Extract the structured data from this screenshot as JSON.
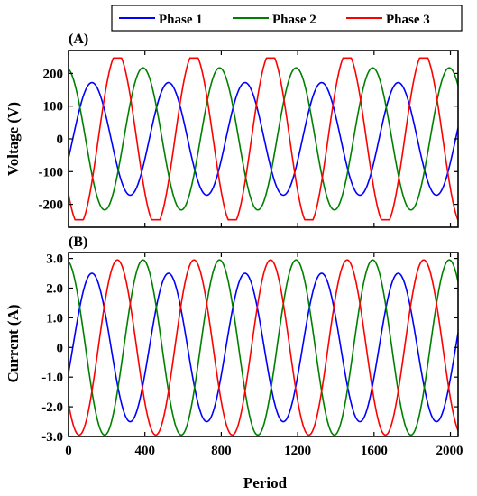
{
  "legend": [
    "Phase 1",
    "Phase 2",
    "Phase 3"
  ],
  "colors": {
    "Phase 1": "#0000ff",
    "Phase 2": "#008000",
    "Phase 3": "#ff0000"
  },
  "chart_data": [
    {
      "type": "line",
      "panel_label": "(A)",
      "ylabel": "Voltage (V)",
      "xlabel": "",
      "xlim": [
        0,
        2040
      ],
      "ylim": [
        -270,
        270
      ],
      "yticks": [
        -200,
        -100,
        0,
        100,
        200
      ],
      "ytick_labels": [
        "-200",
        "-100",
        "0",
        "100",
        "200"
      ],
      "xtick_labels_shown": false,
      "period": 401,
      "series": [
        {
          "name": "Phase 1",
          "amplitude": 172,
          "clip": 172,
          "phase_deg": -20,
          "peaks_x": [
            220,
            621,
            1022,
            1423,
            1824
          ],
          "troughs_x": [
            20,
            421,
            822,
            1223,
            1624
          ]
        },
        {
          "name": "Phase 2",
          "amplitude": 217,
          "clip": 217,
          "phase_deg": 100,
          "peaks_x": [
            352,
            753,
            1154,
            1555,
            1956
          ],
          "troughs_x": [
            152,
            553,
            954,
            1355,
            1756
          ]
        },
        {
          "name": "Phase 3",
          "amplitude": 262,
          "clip": 247,
          "phase_deg": -140,
          "peaks_x": [
            86,
            487,
            888,
            1289,
            1690
          ],
          "troughs_x": [
            286,
            687,
            1088,
            1489,
            1890
          ]
        }
      ]
    },
    {
      "type": "line",
      "panel_label": "(B)",
      "ylabel": "Current (A)",
      "xlabel": "Period",
      "xlim": [
        0,
        2040
      ],
      "ylim": [
        -3.0,
        3.2
      ],
      "xticks": [
        0,
        400,
        800,
        1200,
        1600,
        2000
      ],
      "xtick_labels": [
        "0",
        "400",
        "800",
        "1200",
        "1600",
        "2000"
      ],
      "yticks": [
        -3.0,
        -2.0,
        -1.0,
        0,
        1.0,
        2.0,
        3.0
      ],
      "ytick_labels": [
        "-3.0",
        "-2.0",
        "-1.0",
        "0",
        "1.0",
        "2.0",
        "3.0"
      ],
      "period": 401,
      "series": [
        {
          "name": "Phase 1",
          "amplitude": 2.5,
          "phase_deg": -20,
          "peaks_x": [
            220,
            621,
            1022,
            1423,
            1824
          ],
          "troughs_x": [
            20,
            421,
            822,
            1223,
            1624
          ]
        },
        {
          "name": "Phase 2",
          "amplitude": 2.95,
          "phase_deg": 100,
          "peaks_x": [
            352,
            753,
            1154,
            1555,
            1956
          ],
          "troughs_x": [
            152,
            553,
            954,
            1355,
            1756
          ]
        },
        {
          "name": "Phase 3",
          "amplitude": 2.95,
          "phase_deg": -140,
          "peaks_x": [
            86,
            487,
            888,
            1289,
            1690
          ],
          "troughs_x": [
            286,
            687,
            1088,
            1489,
            1890
          ]
        }
      ]
    }
  ]
}
